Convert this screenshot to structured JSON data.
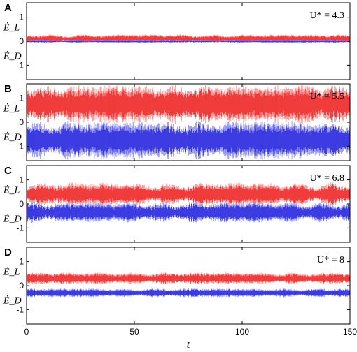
{
  "colors": {
    "lift": "#f03030",
    "lift_light": "#f7a0a0",
    "drag": "#3030e0",
    "drag_light": "#a0a0f0",
    "axis": "#000000"
  },
  "chart_data": [
    {
      "type": "line",
      "panel": "A",
      "annotation": "U* = 4.3",
      "ylabels": [
        "Ė_L",
        "Ė_D"
      ],
      "ylim": [
        -1.6,
        1.6
      ],
      "yticks": [
        1,
        0,
        -1
      ],
      "xlim": [
        0,
        150
      ],
      "series": [
        {
          "name": "Ė_L",
          "kind": "lift",
          "mean": 0.1,
          "amplitude": 0.15,
          "modulation": 0.5
        },
        {
          "name": "Ė_D",
          "kind": "drag",
          "mean": 0.0,
          "amplitude": 0.05,
          "modulation": 0.4
        }
      ]
    },
    {
      "type": "line",
      "panel": "B",
      "annotation": "U* = 5.5",
      "ylabels": [
        "Ė_L",
        "Ė_D"
      ],
      "ylim": [
        -1.6,
        1.6
      ],
      "yticks": [
        1,
        0,
        -1
      ],
      "xlim": [
        0,
        150
      ],
      "series": [
        {
          "name": "Ė_L",
          "kind": "lift",
          "mean": 0.75,
          "amplitude": 0.65,
          "modulation": 0.3
        },
        {
          "name": "Ė_D",
          "kind": "drag",
          "mean": -0.75,
          "amplitude": 0.65,
          "modulation": 0.3
        }
      ]
    },
    {
      "type": "line",
      "panel": "C",
      "annotation": "U* = 6.8",
      "ylabels": [
        "Ė_L",
        "Ė_D"
      ],
      "ylim": [
        -1.6,
        1.6
      ],
      "yticks": [
        1,
        0,
        -1
      ],
      "xlim": [
        0,
        150
      ],
      "series": [
        {
          "name": "Ė_L",
          "kind": "lift",
          "mean": 0.4,
          "amplitude": 0.4,
          "modulation": 0.45
        },
        {
          "name": "Ė_D",
          "kind": "drag",
          "mean": -0.35,
          "amplitude": 0.35,
          "modulation": 0.45
        }
      ]
    },
    {
      "type": "line",
      "panel": "D",
      "annotation": "U* = 8",
      "ylabels": [
        "Ė_L",
        "Ė_D"
      ],
      "ylim": [
        -1.6,
        1.6
      ],
      "yticks": [
        1,
        0,
        -1
      ],
      "xlim": [
        0,
        150
      ],
      "series": [
        {
          "name": "Ė_L",
          "kind": "lift",
          "mean": 0.3,
          "amplitude": 0.2,
          "modulation": 0.35
        },
        {
          "name": "Ė_D",
          "kind": "drag",
          "mean": -0.3,
          "amplitude": 0.15,
          "modulation": 0.35
        }
      ]
    }
  ],
  "xaxis": {
    "label": "t",
    "ticks": [
      0,
      50,
      100,
      150
    ]
  }
}
